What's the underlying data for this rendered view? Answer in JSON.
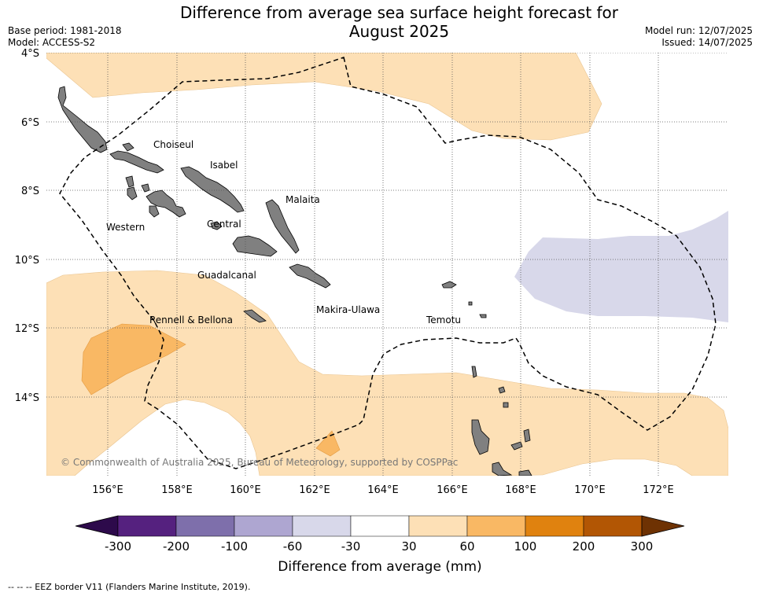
{
  "title_line1": "Difference from average sea surface height forecast for",
  "title_line2": "August 2025",
  "base_period": "Base period: 1981-2018",
  "model": "Model: ACCESS-S2",
  "model_run": "Model run: 12/07/2025",
  "issued": "Issued: 14/07/2025",
  "lat_labels": [
    "4°S",
    "6°S",
    "8°S",
    "10°S",
    "12°S",
    "14°S"
  ],
  "lon_labels": [
    "156°E",
    "158°E",
    "160°E",
    "162°E",
    "164°E",
    "166°E",
    "168°E",
    "170°E",
    "172°E"
  ],
  "region_labels": [
    "Choiseul",
    "Isabel",
    "Malaita",
    "Western",
    "Central",
    "Guadalcanal",
    "Makira-Ulawa",
    "Rennell & Bellona",
    "Temotu"
  ],
  "copyright": "© Commonwealth of Australia 2025, Bureau of Meteorology, supported by COSPPac",
  "colorbar": {
    "title": "Difference from average (mm)",
    "ticks": [
      "-300",
      "-200",
      "-100",
      "-60",
      "-30",
      "30",
      "60",
      "100",
      "200",
      "300"
    ],
    "colors": [
      "#2d0a4b",
      "#55217f",
      "#7e6fab",
      "#aea6d1",
      "#d8d8ea",
      "#ffffff",
      "#fde0b6",
      "#f9b864",
      "#e0820f",
      "#b25604",
      "#6e3203"
    ]
  },
  "legend_note": "--  --  -- EEZ border V11 (Flanders Marine Institute, 2019)."
}
